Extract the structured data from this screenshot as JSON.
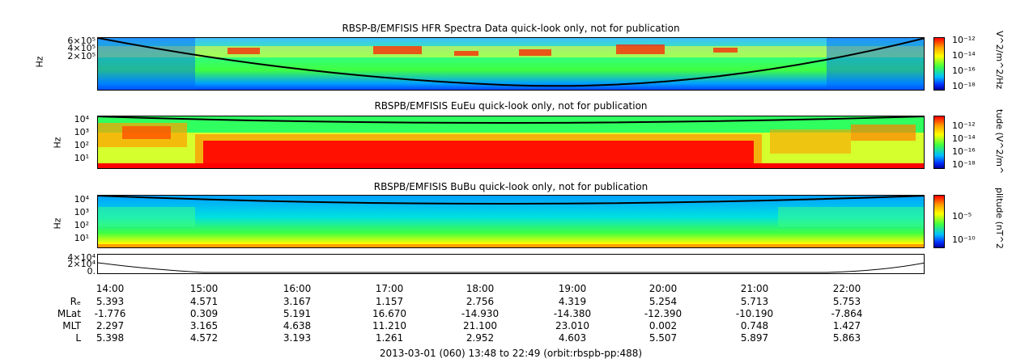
{
  "panel1": {
    "title": "RBSP-B/EMFISIS  HFR Spectra Data quick-look only, not for publication",
    "ylabel": "Hz",
    "yticks": [
      "6×10⁵",
      "4×10⁵",
      "2×10⁵"
    ],
    "cbar_label": "V^2/m^2/Hz",
    "cbar_ticks": [
      "10⁻¹²",
      "10⁻¹⁴",
      "10⁻¹⁶",
      "10⁻¹⁸"
    ]
  },
  "panel2": {
    "title": "RBSPB/EMFISIS  EuEu quick-look only, not for publication",
    "ylabel": "Hz",
    "yticks": [
      "10⁴",
      "10³",
      "10²",
      "10¹"
    ],
    "cbar_label": "tude (V^2/m^",
    "cbar_ticks": [
      "10⁻¹²",
      "10⁻¹⁴",
      "10⁻¹⁶",
      "10⁻¹⁸"
    ]
  },
  "panel3": {
    "title": "RBSPB/EMFISIS  BuBu quick-look only, not for publication",
    "ylabel": "Hz",
    "yticks": [
      "10⁴",
      "10³",
      "10²",
      "10¹"
    ],
    "cbar_label": "plitude (nT^2",
    "cbar_ticks": [
      "10⁻⁵",
      "10⁻¹⁰"
    ]
  },
  "panel4": {
    "yticks": [
      "4×10⁴",
      "2×10⁴",
      "0."
    ]
  },
  "ephemeris": {
    "times": [
      "14:00",
      "15:00",
      "16:00",
      "17:00",
      "18:00",
      "19:00",
      "20:00",
      "21:00",
      "22:00"
    ],
    "rows": [
      {
        "label": "Rₑ",
        "values": [
          "5.393",
          "4.571",
          "3.167",
          "1.157",
          "2.756",
          "4.319",
          "5.254",
          "5.713",
          "5.753"
        ]
      },
      {
        "label": "MLat",
        "values": [
          "-1.776",
          "0.309",
          "5.191",
          "16.670",
          "-14.930",
          "-14.380",
          "-12.390",
          "-10.190",
          "-7.864"
        ]
      },
      {
        "label": "MLT",
        "values": [
          "2.297",
          "3.165",
          "4.638",
          "11.210",
          "21.100",
          "23.010",
          "0.002",
          "0.748",
          "1.427"
        ]
      },
      {
        "label": "L",
        "values": [
          "5.398",
          "4.572",
          "3.193",
          "1.261",
          "2.952",
          "4.603",
          "5.507",
          "5.897",
          "5.863"
        ]
      }
    ]
  },
  "footer": "2013-03-01 (060) 13:48 to 22:49 (orbit:rbspb-pp:488)",
  "chart_data": {
    "type": "heatmap",
    "x_range": [
      "13:48",
      "22:49"
    ],
    "x_ticks": [
      "14:00",
      "15:00",
      "16:00",
      "17:00",
      "18:00",
      "19:00",
      "20:00",
      "21:00",
      "22:00"
    ],
    "panels": [
      {
        "title": "RBSP-B/EMFISIS  HFR Spectra Data quick-look only, not for publication",
        "ylabel": "Hz",
        "colorbar": "V^2/m^2/Hz",
        "color_range_log10": [
          -18,
          -12
        ]
      },
      {
        "title": "RBSPB/EMFISIS  EuEu quick-look only, not for publication",
        "ylabel": "Hz",
        "colorbar": "tude (V^2/m^",
        "color_range_log10": [
          -18,
          -12
        ]
      },
      {
        "title": "RBSPB/EMFISIS  BuBu quick-look only, not for publication",
        "ylabel": "Hz",
        "colorbar": "plitude (nT^2",
        "color_range_log10": [
          -10,
          -5
        ]
      }
    ]
  }
}
